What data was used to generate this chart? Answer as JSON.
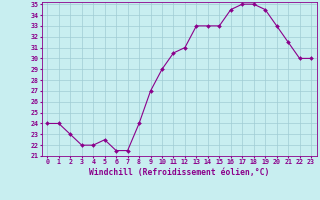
{
  "x": [
    0,
    1,
    2,
    3,
    4,
    5,
    6,
    7,
    8,
    9,
    10,
    11,
    12,
    13,
    14,
    15,
    16,
    17,
    18,
    19,
    20,
    21,
    22,
    23
  ],
  "y": [
    24,
    24,
    23,
    22,
    22,
    22.5,
    21.5,
    21.5,
    24,
    27,
    29,
    30.5,
    31,
    33,
    33,
    33,
    34.5,
    35,
    35,
    34.5,
    33,
    31.5,
    30,
    30
  ],
  "line_color": "#8B008B",
  "marker_color": "#8B008B",
  "bg_color": "#c8eef0",
  "grid_color": "#a0ccd4",
  "axis_label": "Windchill (Refroidissement éolien,°C)",
  "ylim": [
    21,
    35
  ],
  "xlim": [
    -0.5,
    23.5
  ],
  "yticks": [
    21,
    22,
    23,
    24,
    25,
    26,
    27,
    28,
    29,
    30,
    31,
    32,
    33,
    34,
    35
  ],
  "xticks": [
    0,
    1,
    2,
    3,
    4,
    5,
    6,
    7,
    8,
    9,
    10,
    11,
    12,
    13,
    14,
    15,
    16,
    17,
    18,
    19,
    20,
    21,
    22,
    23
  ],
  "tick_label_fontsize": 4.8,
  "xlabel_fontsize": 5.8,
  "marker_size": 2.0,
  "line_width": 0.8
}
